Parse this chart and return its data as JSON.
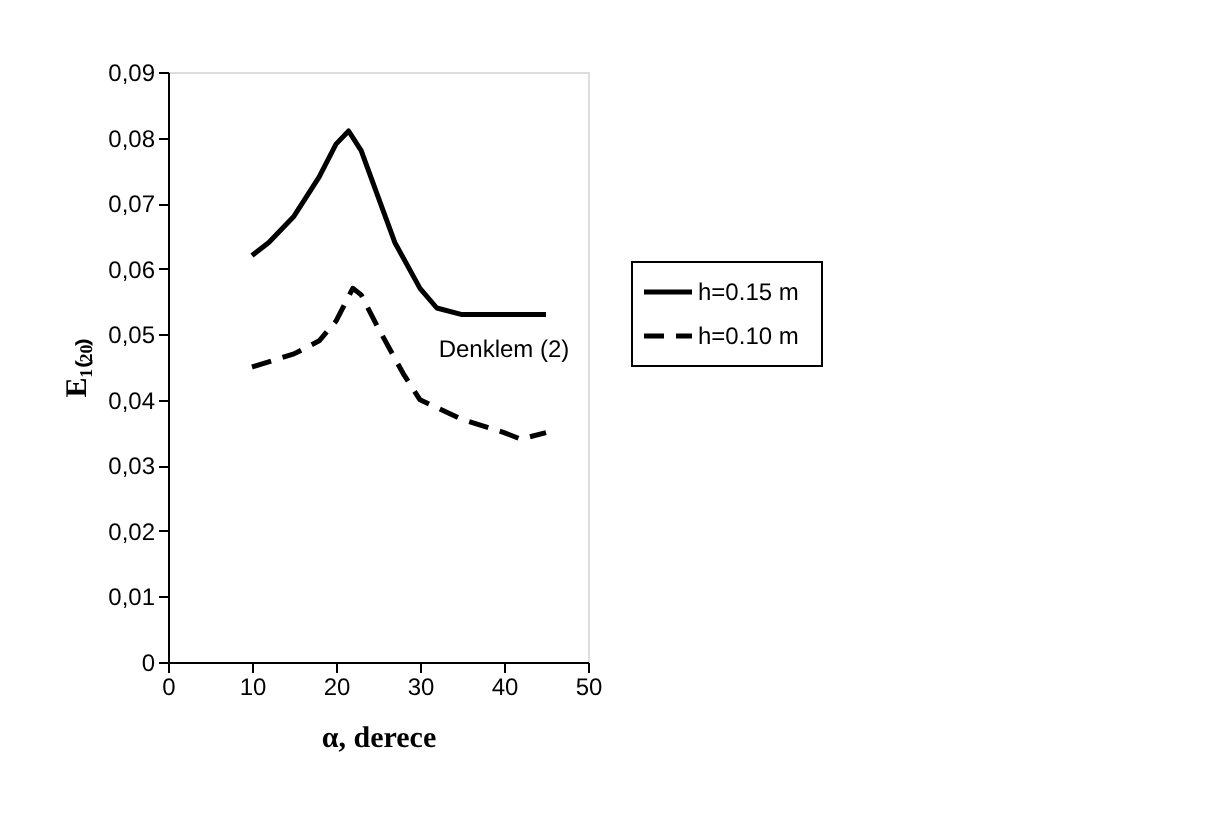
{
  "chart_data": {
    "type": "line",
    "xlabel": "α, derece",
    "ylabel": "E₁₍₂₀₎",
    "xlim": [
      0,
      50
    ],
    "xticks": [
      0,
      10,
      20,
      30,
      40,
      50
    ],
    "ylim": [
      0,
      0.09
    ],
    "yticks": [
      0,
      {
        "value": 0.01,
        "label": "0,01"
      },
      {
        "value": 0.02,
        "label": "0,02"
      },
      {
        "value": 0.03,
        "label": "0,03"
      },
      {
        "value": 0.04,
        "label": "0,04"
      },
      {
        "value": 0.05,
        "label": "0,05"
      },
      {
        "value": 0.06,
        "label": "0,06"
      },
      {
        "value": 0.07,
        "label": "0,07"
      },
      {
        "value": 0.08,
        "label": "0,08"
      },
      {
        "value": 0.09,
        "label": "0,09"
      }
    ],
    "grid": false,
    "legend": "right",
    "marker": "none",
    "series": [
      {
        "name": "h=0.15 m",
        "color": "#000000",
        "line_style": "solid",
        "x": [
          10,
          12,
          15,
          18,
          20,
          21.5,
          23,
          25,
          27,
          30,
          32,
          35,
          45
        ],
        "values": [
          0.062,
          0.064,
          0.068,
          0.074,
          0.079,
          0.081,
          0.078,
          0.071,
          0.064,
          0.057,
          0.054,
          0.053,
          0.053
        ]
      },
      {
        "name": "h=0.10 m",
        "color": "#000000",
        "line_style": "dashed",
        "x": [
          10,
          15,
          18,
          20,
          22,
          23,
          25,
          28,
          30,
          35,
          40,
          42,
          45
        ],
        "values": [
          0.045,
          0.047,
          0.049,
          0.052,
          0.057,
          0.056,
          0.051,
          0.044,
          0.04,
          0.037,
          0.035,
          0.034,
          0.035
        ]
      }
    ],
    "annotations": [
      "Denklem (2)"
    ]
  }
}
